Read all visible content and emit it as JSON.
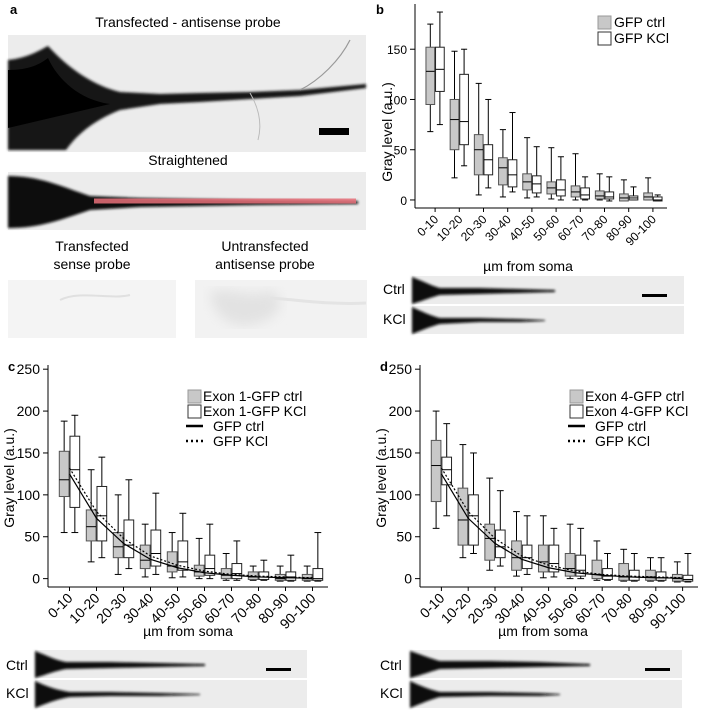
{
  "panel_letters": {
    "a": "a",
    "b": "b",
    "c": "c",
    "d": "d"
  },
  "panel_a": {
    "top_title": "Transfected - antisense probe",
    "straightened_title": "Straightened",
    "sense_title_line1": "Transfected",
    "sense_title_line2": "sense probe",
    "untrans_title_line1": "Untransfected",
    "untrans_title_line2": "antisense probe"
  },
  "strip_labels": {
    "ctrl": "Ctrl",
    "kcl": "KCl"
  },
  "colors": {
    "ctrl_fill": "#c8c8c8",
    "kcl_fill": "#ffffff",
    "straighten_line": "#e8707a"
  },
  "chart_data": [
    {
      "id": "b",
      "type": "box",
      "title": "",
      "xlabel": "µm from soma",
      "ylabel": "Gray level (a.u.)",
      "ylim": [
        -8,
        195
      ],
      "yticks": [
        0,
        50,
        100,
        150
      ],
      "categories": [
        "0-10",
        "10-20",
        "20-30",
        "30-40",
        "40-50",
        "50-60",
        "60-70",
        "70-80",
        "80-90",
        "90-100"
      ],
      "legend": [
        "GFP ctrl",
        "GFP KCl"
      ],
      "series": [
        {
          "name": "GFP ctrl",
          "boxes": [
            [
              68,
              95,
              128,
              152,
              175
            ],
            [
              22,
              50,
              80,
              100,
              148
            ],
            [
              5,
              25,
              50,
              65,
              116
            ],
            [
              3,
              15,
              32,
              42,
              70
            ],
            [
              2,
              10,
              18,
              26,
              62
            ],
            [
              1,
              6,
              12,
              18,
              52
            ],
            [
              0,
              3,
              8,
              14,
              46
            ],
            [
              0,
              1,
              4,
              9,
              26
            ],
            [
              0,
              -1,
              2,
              6,
              20
            ],
            [
              0,
              0,
              3,
              7,
              22
            ]
          ]
        },
        {
          "name": "GFP KCl",
          "boxes": [
            [
              75,
              108,
              130,
              152,
              187
            ],
            [
              34,
              55,
              78,
              125,
              150
            ],
            [
              12,
              25,
              40,
              55,
              100
            ],
            [
              8,
              13,
              25,
              40,
              87
            ],
            [
              3,
              7,
              16,
              24,
              53
            ],
            [
              0,
              4,
              10,
              20,
              43
            ],
            [
              0,
              1,
              5,
              12,
              23
            ],
            [
              -1,
              1,
              3,
              8,
              23
            ],
            [
              0,
              0,
              2,
              4,
              13
            ],
            [
              -1,
              -1,
              0,
              3,
              5
            ]
          ]
        }
      ]
    },
    {
      "id": "c",
      "type": "box",
      "title": "",
      "xlabel": "µm from soma",
      "ylabel": "Gray level (a.u.)",
      "ylim": [
        -10,
        255
      ],
      "yticks": [
        0,
        50,
        100,
        150,
        200,
        250
      ],
      "categories": [
        "0-10",
        "10-20",
        "20-30",
        "30-40",
        "40-50",
        "50-60",
        "60-70",
        "70-80",
        "80-90",
        "90-100"
      ],
      "legend": [
        "Exon 1-GFP ctrl",
        "Exon 1-GFP KCl",
        "GFP ctrl",
        "GFP KCl"
      ],
      "series": [
        {
          "name": "Exon 1-GFP ctrl",
          "boxes": [
            [
              55,
              98,
              118,
              152,
              188
            ],
            [
              20,
              45,
              62,
              82,
              130
            ],
            [
              5,
              25,
              38,
              55,
              100
            ],
            [
              2,
              12,
              22,
              40,
              65
            ],
            [
              1,
              8,
              15,
              32,
              55
            ],
            [
              0,
              3,
              8,
              16,
              48
            ],
            [
              -2,
              0,
              4,
              12,
              30
            ],
            [
              -2,
              -1,
              2,
              8,
              15
            ],
            [
              -3,
              -2,
              0,
              5,
              15
            ],
            [
              -3,
              -2,
              0,
              5,
              15
            ]
          ]
        },
        {
          "name": "Exon 1-GFP KCl",
          "boxes": [
            [
              55,
              85,
              130,
              170,
              195
            ],
            [
              25,
              45,
              75,
              110,
              145
            ],
            [
              12,
              25,
              40,
              70,
              118
            ],
            [
              5,
              15,
              30,
              58,
              102
            ],
            [
              2,
              10,
              20,
              45,
              78
            ],
            [
              0,
              4,
              12,
              28,
              65
            ],
            [
              -2,
              0,
              6,
              18,
              45
            ],
            [
              -2,
              -1,
              2,
              8,
              22
            ],
            [
              -3,
              -2,
              2,
              8,
              28
            ],
            [
              -3,
              -2,
              0,
              12,
              55
            ]
          ]
        }
      ],
      "fit_lines": [
        {
          "name": "GFP ctrl",
          "style": "solid",
          "values": [
            125,
            72,
            42,
            23,
            13,
            7,
            4,
            2,
            1,
            0.5
          ]
        },
        {
          "name": "GFP KCl",
          "style": "dotted",
          "values": [
            132,
            80,
            48,
            27,
            16,
            9,
            5,
            3,
            2,
            1
          ]
        }
      ]
    },
    {
      "id": "d",
      "type": "box",
      "title": "",
      "xlabel": "µm from soma",
      "ylabel": "Gray level (a.u.)",
      "ylim": [
        -10,
        255
      ],
      "yticks": [
        0,
        50,
        100,
        150,
        200,
        250
      ],
      "categories": [
        "0-10",
        "10-20",
        "20-30",
        "30-40",
        "40-50",
        "50-60",
        "60-70",
        "70-80",
        "80-90",
        "90-100"
      ],
      "legend": [
        "Exon 4-GFP ctrl",
        "Exon 4-GFP KCl",
        "GFP ctrl",
        "GFP KCl"
      ],
      "series": [
        {
          "name": "Exon 4-GFP ctrl",
          "boxes": [
            [
              60,
              92,
              135,
              165,
              200
            ],
            [
              25,
              40,
              70,
              108,
              160
            ],
            [
              10,
              22,
              48,
              65,
              120
            ],
            [
              3,
              10,
              25,
              45,
              80
            ],
            [
              1,
              8,
              20,
              40,
              75
            ],
            [
              0,
              3,
              12,
              30,
              65
            ],
            [
              -2,
              0,
              5,
              22,
              45
            ],
            [
              -3,
              -2,
              2,
              18,
              35
            ],
            [
              -3,
              -2,
              2,
              10,
              25
            ],
            [
              -4,
              -3,
              0,
              5,
              20
            ]
          ]
        },
        {
          "name": "Exon 4-GFP KCl",
          "boxes": [
            [
              75,
              112,
              130,
              145,
              185
            ],
            [
              30,
              40,
              75,
              100,
              150
            ],
            [
              15,
              25,
              38,
              58,
              105
            ],
            [
              5,
              12,
              25,
              40,
              75
            ],
            [
              2,
              8,
              18,
              40,
              60
            ],
            [
              0,
              3,
              10,
              28,
              60
            ],
            [
              -2,
              -1,
              3,
              12,
              30
            ],
            [
              -3,
              -2,
              2,
              10,
              30
            ],
            [
              -3,
              -2,
              1,
              8,
              25
            ],
            [
              -4,
              -3,
              -1,
              4,
              30
            ]
          ]
        }
      ],
      "fit_lines": [
        {
          "name": "GFP ctrl",
          "style": "solid",
          "values": [
            125,
            72,
            42,
            23,
            13,
            7,
            4,
            2,
            1,
            0.5
          ]
        },
        {
          "name": "GFP KCl",
          "style": "dotted",
          "values": [
            132,
            80,
            48,
            27,
            16,
            9,
            5,
            3,
            2,
            1
          ]
        }
      ]
    }
  ]
}
